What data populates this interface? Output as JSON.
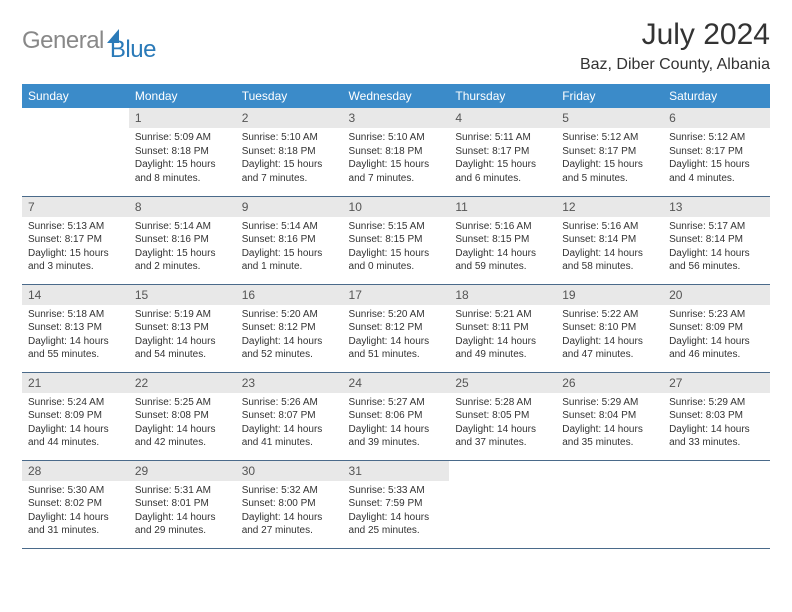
{
  "logo": {
    "part1": "General",
    "part2": "Blue"
  },
  "title": "July 2024",
  "location": "Baz, Diber County, Albania",
  "colors": {
    "header_bg": "#3b8bc9",
    "header_text": "#ffffff",
    "daynum_bg": "#e8e8e8",
    "body_text": "#333333",
    "logo_gray": "#888888",
    "logo_blue": "#2a7ab8",
    "row_border": "#4a6a8a"
  },
  "typography": {
    "title_fontsize": 30,
    "location_fontsize": 16,
    "weekday_fontsize": 12,
    "daynum_fontsize": 12,
    "body_fontsize": 10
  },
  "weekdays": [
    "Sunday",
    "Monday",
    "Tuesday",
    "Wednesday",
    "Thursday",
    "Friday",
    "Saturday"
  ],
  "first_weekday_index": 1,
  "days": [
    {
      "n": "1",
      "sunrise": "Sunrise: 5:09 AM",
      "sunset": "Sunset: 8:18 PM",
      "daylight": "Daylight: 15 hours and 8 minutes."
    },
    {
      "n": "2",
      "sunrise": "Sunrise: 5:10 AM",
      "sunset": "Sunset: 8:18 PM",
      "daylight": "Daylight: 15 hours and 7 minutes."
    },
    {
      "n": "3",
      "sunrise": "Sunrise: 5:10 AM",
      "sunset": "Sunset: 8:18 PM",
      "daylight": "Daylight: 15 hours and 7 minutes."
    },
    {
      "n": "4",
      "sunrise": "Sunrise: 5:11 AM",
      "sunset": "Sunset: 8:17 PM",
      "daylight": "Daylight: 15 hours and 6 minutes."
    },
    {
      "n": "5",
      "sunrise": "Sunrise: 5:12 AM",
      "sunset": "Sunset: 8:17 PM",
      "daylight": "Daylight: 15 hours and 5 minutes."
    },
    {
      "n": "6",
      "sunrise": "Sunrise: 5:12 AM",
      "sunset": "Sunset: 8:17 PM",
      "daylight": "Daylight: 15 hours and 4 minutes."
    },
    {
      "n": "7",
      "sunrise": "Sunrise: 5:13 AM",
      "sunset": "Sunset: 8:17 PM",
      "daylight": "Daylight: 15 hours and 3 minutes."
    },
    {
      "n": "8",
      "sunrise": "Sunrise: 5:14 AM",
      "sunset": "Sunset: 8:16 PM",
      "daylight": "Daylight: 15 hours and 2 minutes."
    },
    {
      "n": "9",
      "sunrise": "Sunrise: 5:14 AM",
      "sunset": "Sunset: 8:16 PM",
      "daylight": "Daylight: 15 hours and 1 minute."
    },
    {
      "n": "10",
      "sunrise": "Sunrise: 5:15 AM",
      "sunset": "Sunset: 8:15 PM",
      "daylight": "Daylight: 15 hours and 0 minutes."
    },
    {
      "n": "11",
      "sunrise": "Sunrise: 5:16 AM",
      "sunset": "Sunset: 8:15 PM",
      "daylight": "Daylight: 14 hours and 59 minutes."
    },
    {
      "n": "12",
      "sunrise": "Sunrise: 5:16 AM",
      "sunset": "Sunset: 8:14 PM",
      "daylight": "Daylight: 14 hours and 58 minutes."
    },
    {
      "n": "13",
      "sunrise": "Sunrise: 5:17 AM",
      "sunset": "Sunset: 8:14 PM",
      "daylight": "Daylight: 14 hours and 56 minutes."
    },
    {
      "n": "14",
      "sunrise": "Sunrise: 5:18 AM",
      "sunset": "Sunset: 8:13 PM",
      "daylight": "Daylight: 14 hours and 55 minutes."
    },
    {
      "n": "15",
      "sunrise": "Sunrise: 5:19 AM",
      "sunset": "Sunset: 8:13 PM",
      "daylight": "Daylight: 14 hours and 54 minutes."
    },
    {
      "n": "16",
      "sunrise": "Sunrise: 5:20 AM",
      "sunset": "Sunset: 8:12 PM",
      "daylight": "Daylight: 14 hours and 52 minutes."
    },
    {
      "n": "17",
      "sunrise": "Sunrise: 5:20 AM",
      "sunset": "Sunset: 8:12 PM",
      "daylight": "Daylight: 14 hours and 51 minutes."
    },
    {
      "n": "18",
      "sunrise": "Sunrise: 5:21 AM",
      "sunset": "Sunset: 8:11 PM",
      "daylight": "Daylight: 14 hours and 49 minutes."
    },
    {
      "n": "19",
      "sunrise": "Sunrise: 5:22 AM",
      "sunset": "Sunset: 8:10 PM",
      "daylight": "Daylight: 14 hours and 47 minutes."
    },
    {
      "n": "20",
      "sunrise": "Sunrise: 5:23 AM",
      "sunset": "Sunset: 8:09 PM",
      "daylight": "Daylight: 14 hours and 46 minutes."
    },
    {
      "n": "21",
      "sunrise": "Sunrise: 5:24 AM",
      "sunset": "Sunset: 8:09 PM",
      "daylight": "Daylight: 14 hours and 44 minutes."
    },
    {
      "n": "22",
      "sunrise": "Sunrise: 5:25 AM",
      "sunset": "Sunset: 8:08 PM",
      "daylight": "Daylight: 14 hours and 42 minutes."
    },
    {
      "n": "23",
      "sunrise": "Sunrise: 5:26 AM",
      "sunset": "Sunset: 8:07 PM",
      "daylight": "Daylight: 14 hours and 41 minutes."
    },
    {
      "n": "24",
      "sunrise": "Sunrise: 5:27 AM",
      "sunset": "Sunset: 8:06 PM",
      "daylight": "Daylight: 14 hours and 39 minutes."
    },
    {
      "n": "25",
      "sunrise": "Sunrise: 5:28 AM",
      "sunset": "Sunset: 8:05 PM",
      "daylight": "Daylight: 14 hours and 37 minutes."
    },
    {
      "n": "26",
      "sunrise": "Sunrise: 5:29 AM",
      "sunset": "Sunset: 8:04 PM",
      "daylight": "Daylight: 14 hours and 35 minutes."
    },
    {
      "n": "27",
      "sunrise": "Sunrise: 5:29 AM",
      "sunset": "Sunset: 8:03 PM",
      "daylight": "Daylight: 14 hours and 33 minutes."
    },
    {
      "n": "28",
      "sunrise": "Sunrise: 5:30 AM",
      "sunset": "Sunset: 8:02 PM",
      "daylight": "Daylight: 14 hours and 31 minutes."
    },
    {
      "n": "29",
      "sunrise": "Sunrise: 5:31 AM",
      "sunset": "Sunset: 8:01 PM",
      "daylight": "Daylight: 14 hours and 29 minutes."
    },
    {
      "n": "30",
      "sunrise": "Sunrise: 5:32 AM",
      "sunset": "Sunset: 8:00 PM",
      "daylight": "Daylight: 14 hours and 27 minutes."
    },
    {
      "n": "31",
      "sunrise": "Sunrise: 5:33 AM",
      "sunset": "Sunset: 7:59 PM",
      "daylight": "Daylight: 14 hours and 25 minutes."
    }
  ]
}
